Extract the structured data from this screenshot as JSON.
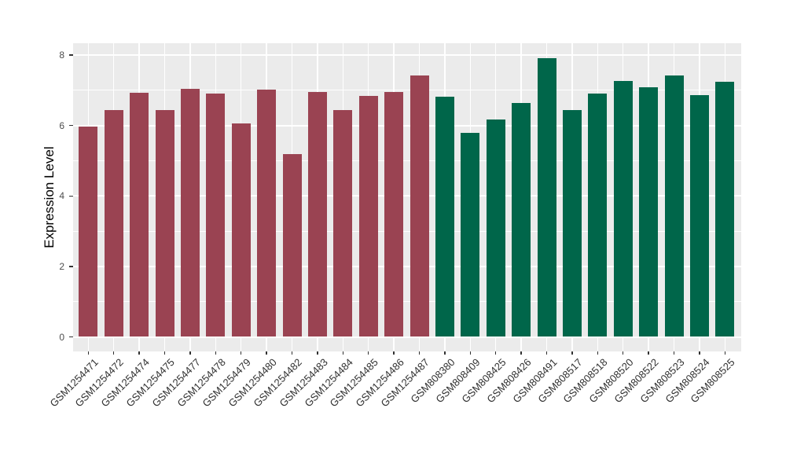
{
  "figure": {
    "background_color": "#FFFFFF",
    "panel_background_color": "#EBEBEB",
    "grid_color": "#FFFFFF",
    "tick_mark_color": "#333333",
    "y_tick_label_color": "#4D4D4D",
    "x_tick_label_color": "#303030"
  },
  "chart_data": {
    "type": "bar",
    "title": "",
    "xlabel": "",
    "ylabel": "Expression Level",
    "ylim": [
      0,
      8.3
    ],
    "yticks": [
      0,
      2,
      4,
      6,
      8
    ],
    "yticks_minor": [
      1,
      3,
      5,
      7
    ],
    "grid": "on",
    "legend_position": "none",
    "categories": [
      "GSM1254471",
      "GSM1254472",
      "GSM1254474",
      "GSM1254475",
      "GSM1254477",
      "GSM1254478",
      "GSM1254479",
      "GSM1254480",
      "GSM1254482",
      "GSM1254483",
      "GSM1254484",
      "GSM1254485",
      "GSM1254486",
      "GSM1254487",
      "GSM808380",
      "GSM808409",
      "GSM808425",
      "GSM808426",
      "GSM808491",
      "GSM808517",
      "GSM808518",
      "GSM808520",
      "GSM808522",
      "GSM808523",
      "GSM808524",
      "GSM808525"
    ],
    "values": [
      5.96,
      6.43,
      6.93,
      6.43,
      7.04,
      6.9,
      6.05,
      7.03,
      5.18,
      6.95,
      6.45,
      6.85,
      6.95,
      7.43,
      6.83,
      5.79,
      6.18,
      6.65,
      7.91,
      6.44,
      6.9,
      7.26,
      7.09,
      7.43,
      6.87,
      7.25
    ],
    "bar_groups": [
      "group1",
      "group1",
      "group1",
      "group1",
      "group1",
      "group1",
      "group1",
      "group1",
      "group1",
      "group1",
      "group1",
      "group1",
      "group1",
      "group1",
      "group2",
      "group2",
      "group2",
      "group2",
      "group2",
      "group2",
      "group2",
      "group2",
      "group2",
      "group2",
      "group2",
      "group2"
    ],
    "group_colors": {
      "group1": "#9A4352",
      "group2": "#00664A"
    }
  }
}
